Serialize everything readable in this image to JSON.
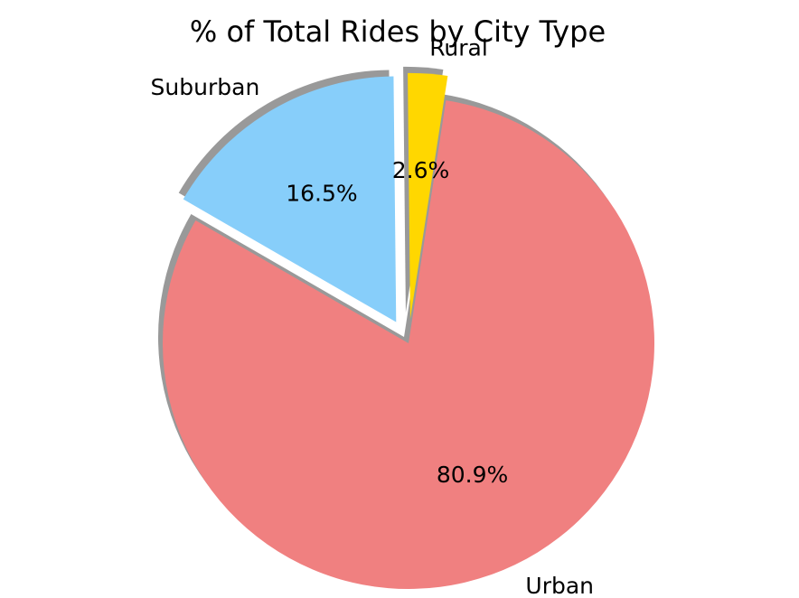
{
  "chart_data": {
    "type": "pie",
    "title": "% of Total Rides by City Type",
    "labels": [
      "Urban",
      "Rural",
      "Suburban"
    ],
    "values": [
      80.9,
      2.6,
      16.5
    ],
    "pct_labels": [
      "80.9%",
      "2.6%",
      "16.5%"
    ],
    "colors": [
      "#f08080",
      "#ffd700",
      "#87cefa"
    ],
    "explode": [
      0,
      0.1,
      0.1
    ],
    "start_angle_deg": 150,
    "shadow": true
  }
}
